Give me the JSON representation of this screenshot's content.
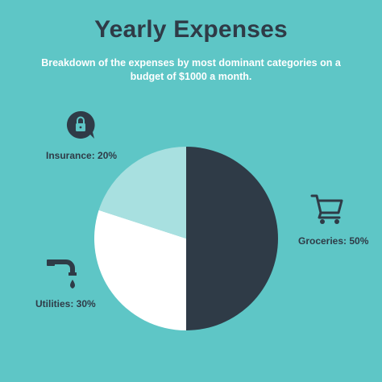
{
  "title": "Yearly Expenses",
  "subtitle": "Breakdown of the expenses by most dominant categories on a budget of $1000 a month.",
  "colors": {
    "background": "#5ec6c6",
    "groceries": "#2f3b47",
    "utilities": "#ffffff",
    "insurance": "#a8e0e0",
    "text": "#2f3b47"
  },
  "icons": {
    "insurance": "lock-speech-bubble-icon",
    "groceries": "shopping-cart-icon",
    "utilities": "faucet-icon"
  },
  "chart_data": {
    "type": "pie",
    "title": "Yearly Expenses",
    "subtitle": "Breakdown of the expenses by most dominant categories on a budget of $1000 a month.",
    "categories": [
      "Groceries",
      "Utilities",
      "Insurance"
    ],
    "values": [
      50,
      30,
      20
    ],
    "labels": [
      "Groceries: 50%",
      "Utilities: 30%",
      "Insurance: 20%"
    ]
  }
}
